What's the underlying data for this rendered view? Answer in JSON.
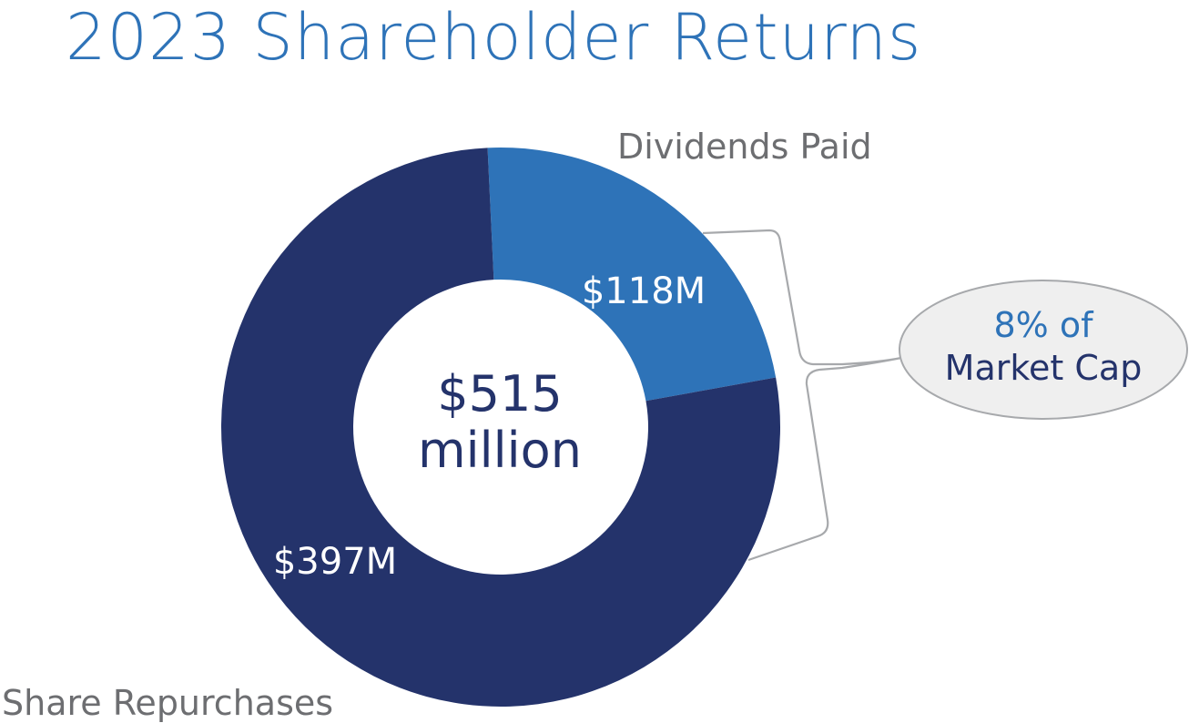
{
  "chart_data": {
    "type": "pie",
    "title": "2023 Shareholder Returns",
    "categories": [
      "Dividends Paid",
      "Share Repurchases"
    ],
    "values": [
      118,
      397
    ],
    "value_labels": [
      "$118M",
      "$397M"
    ],
    "center_label": [
      "$515",
      "million"
    ],
    "callout": [
      "8% of",
      "Market Cap"
    ],
    "colors": [
      "#2e73b8",
      "#24336b"
    ],
    "grid": false,
    "legend": "none"
  }
}
